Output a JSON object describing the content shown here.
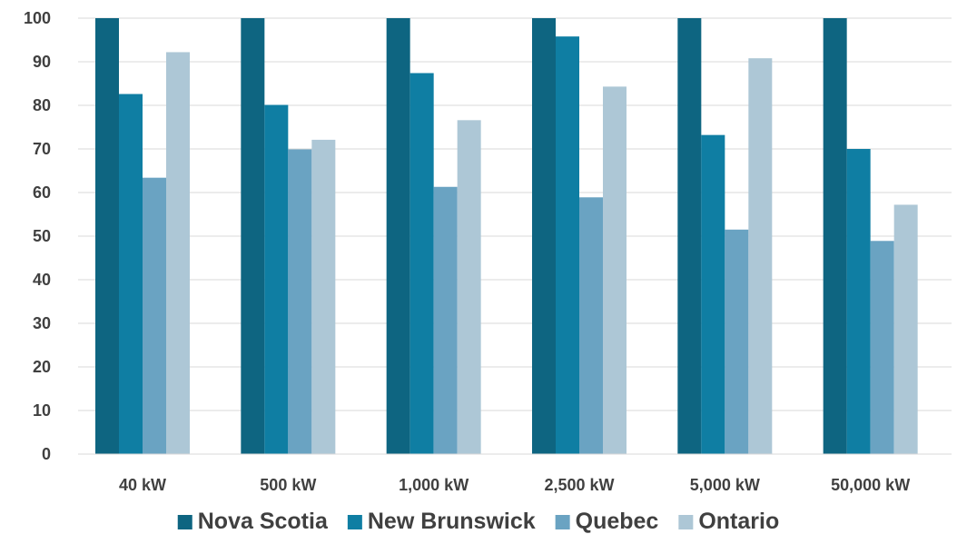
{
  "chart_data": {
    "type": "bar",
    "title": "",
    "xlabel": "",
    "ylabel": "",
    "categories": [
      "40 kW",
      "500 kW",
      "1,000 kW",
      "2,500 kW",
      "5,000 kW",
      "50,000 kW"
    ],
    "series": [
      {
        "name": "Nova Scotia",
        "color": "#0e6581",
        "values": [
          100,
          100,
          100,
          100,
          100,
          100
        ]
      },
      {
        "name": "New Brunswick",
        "color": "#0f7ea3",
        "values": [
          82.6,
          80.1,
          87.4,
          95.8,
          73.2,
          70.0
        ]
      },
      {
        "name": "Quebec",
        "color": "#6aa3c2",
        "values": [
          63.4,
          69.9,
          61.3,
          58.9,
          51.5,
          48.9
        ]
      },
      {
        "name": "Ontario",
        "color": "#adc7d6",
        "values": [
          92.2,
          72.1,
          76.6,
          84.3,
          90.8,
          57.2
        ]
      }
    ],
    "ylim": [
      0,
      100
    ],
    "yticks": [
      "0",
      "10",
      "20",
      "30",
      "40",
      "50",
      "60",
      "70",
      "80",
      "90",
      "100"
    ],
    "grid": true,
    "legend_position": "bottom"
  }
}
